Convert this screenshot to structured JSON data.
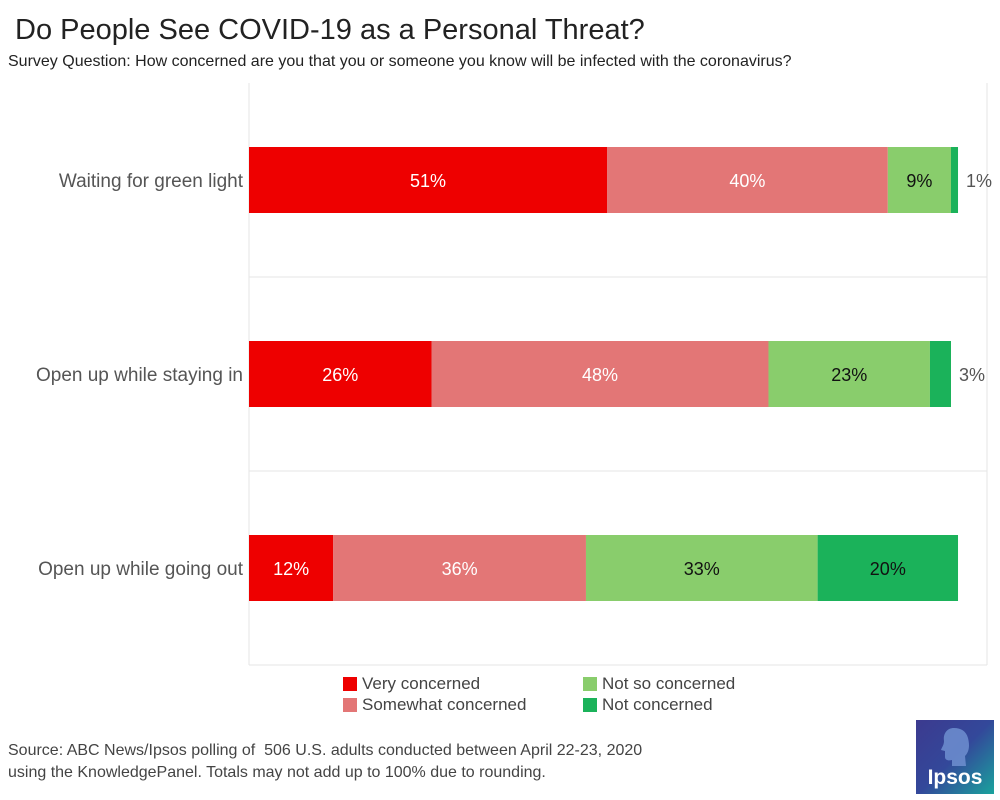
{
  "header": {
    "title": "Do People See COVID-19 as a Personal Threat?",
    "subtitle": "Survey Question: How concerned are you that you or someone you know will be infected with the coronavirus?"
  },
  "chart_data": {
    "type": "bar",
    "orientation": "horizontal",
    "stacked": true,
    "title": "Do People See COVID-19 as a Personal Threat?",
    "subtitle": "Survey Question: How concerned are you that you or someone you know will be infected with the coronavirus?",
    "categories": [
      "Waiting for green light",
      "Open up while staying in",
      "Open up while going out"
    ],
    "series": [
      {
        "name": "Very concerned",
        "color": "#ee0000",
        "values": [
          51,
          26,
          12
        ]
      },
      {
        "name": "Somewhat concerned",
        "color": "#e37676",
        "values": [
          40,
          48,
          36
        ]
      },
      {
        "name": "Not so concerned",
        "color": "#89cd6c",
        "values": [
          9,
          23,
          33
        ]
      },
      {
        "name": "Not concerned",
        "color": "#1bb25a",
        "values": [
          1,
          3,
          20
        ]
      }
    ],
    "value_suffix": "%",
    "xlim": [
      0,
      100
    ],
    "legend_position": "bottom"
  },
  "legend": {
    "items": [
      {
        "label": "Very concerned",
        "color": "#ee0000"
      },
      {
        "label": "Somewhat concerned",
        "color": "#e37676"
      },
      {
        "label": "Not so concerned",
        "color": "#89cd6c"
      },
      {
        "label": "Not concerned",
        "color": "#1bb25a"
      }
    ]
  },
  "footer": {
    "source_line1": "Source: ABC News/Ipsos polling of  506 U.S. adults conducted between April 22-23, 2020",
    "source_line2": "using the KnowledgePanel. Totals may not add up to 100% due to rounding."
  },
  "logo": {
    "text": "Ipsos",
    "icon": "ipsos-head-icon"
  }
}
